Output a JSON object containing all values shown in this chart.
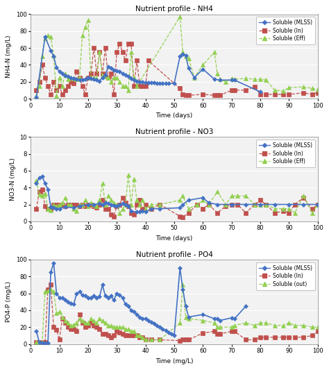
{
  "nh4": {
    "title": "Nutrient profile - NH4",
    "ylabel": "NH4-N (mg/L)",
    "xlabel": "Time (days)",
    "ylim": [
      0,
      100
    ],
    "xlim": [
      0,
      100
    ],
    "yticks": [
      0,
      20,
      40,
      60,
      80,
      100
    ],
    "xticks": [
      0,
      10,
      20,
      30,
      40,
      50,
      60,
      70,
      80,
      90,
      100
    ],
    "mlss_x": [
      2,
      5,
      7,
      8,
      9,
      10,
      11,
      12,
      13,
      14,
      15,
      16,
      17,
      18,
      19,
      20,
      21,
      22,
      23,
      24,
      25,
      26,
      27,
      28,
      29,
      30,
      31,
      32,
      33,
      34,
      35,
      36,
      37,
      38,
      39,
      40,
      41,
      42,
      43,
      44,
      45,
      46,
      47,
      48,
      50,
      52,
      53,
      54,
      55,
      57,
      60,
      64,
      66,
      70,
      71,
      80
    ],
    "mlss_y": [
      2,
      73,
      57,
      50,
      37,
      32,
      30,
      27,
      26,
      25,
      24,
      23,
      22,
      22,
      23,
      25,
      24,
      23,
      22,
      21,
      25,
      28,
      38,
      36,
      34,
      33,
      32,
      30,
      28,
      26,
      24,
      22,
      21,
      20,
      20,
      19,
      19,
      19,
      19,
      18,
      18,
      18,
      18,
      18,
      18,
      50,
      53,
      51,
      36,
      25,
      35,
      23,
      22,
      22,
      22,
      8
    ],
    "in_x": [
      2,
      3,
      4,
      5,
      6,
      7,
      8,
      9,
      10,
      11,
      12,
      13,
      14,
      15,
      16,
      17,
      18,
      19,
      20,
      21,
      22,
      23,
      24,
      25,
      26,
      27,
      28,
      29,
      30,
      31,
      32,
      33,
      34,
      35,
      36,
      37,
      38,
      39,
      40,
      41,
      52,
      53,
      54,
      55,
      60,
      64,
      65,
      66,
      70,
      71,
      75,
      78,
      80,
      82,
      85,
      88,
      90,
      95,
      98,
      100
    ],
    "in_y": [
      10,
      20,
      40,
      25,
      15,
      5,
      20,
      10,
      15,
      5,
      10,
      15,
      20,
      18,
      32,
      25,
      15,
      5,
      25,
      30,
      60,
      30,
      55,
      30,
      60,
      25,
      30,
      5,
      55,
      65,
      55,
      45,
      65,
      65,
      15,
      45,
      15,
      15,
      15,
      45,
      12,
      5,
      4,
      4,
      5,
      4,
      4,
      4,
      10,
      10,
      10,
      14,
      5,
      5,
      5,
      5,
      5,
      7,
      5,
      7
    ],
    "eff_x": [
      2,
      3,
      4,
      5,
      6,
      7,
      8,
      9,
      10,
      11,
      12,
      13,
      14,
      15,
      16,
      17,
      18,
      19,
      20,
      21,
      22,
      23,
      24,
      25,
      26,
      27,
      28,
      29,
      30,
      31,
      32,
      33,
      34,
      35,
      36,
      37,
      52,
      53,
      54,
      55,
      57,
      60,
      64,
      65,
      66,
      68,
      70,
      71,
      75,
      78,
      80,
      82,
      85,
      88,
      90,
      95,
      98,
      100
    ],
    "eff_y": [
      3,
      15,
      50,
      72,
      75,
      73,
      51,
      3,
      25,
      15,
      30,
      23,
      25,
      24,
      23,
      25,
      75,
      85,
      93,
      25,
      25,
      24,
      55,
      27,
      26,
      25,
      20,
      25,
      25,
      20,
      15,
      15,
      10,
      55,
      25,
      15,
      97,
      55,
      50,
      48,
      25,
      40,
      55,
      30,
      23,
      20,
      24,
      23,
      24,
      23,
      23,
      22,
      10,
      9,
      13,
      14,
      12,
      11
    ]
  },
  "no3": {
    "title": "Nutrient profile - NO3",
    "ylabel": "NO3-N (mg/L)",
    "xlabel": "Time (days)",
    "ylim": [
      0,
      10
    ],
    "xlim": [
      0,
      100
    ],
    "yticks": [
      0,
      2,
      4,
      6,
      8,
      10
    ],
    "xticks": [
      0,
      10,
      20,
      30,
      40,
      50,
      60,
      70,
      80,
      90,
      100
    ],
    "mlss_x": [
      2,
      3,
      4,
      5,
      6,
      7,
      8,
      9,
      10,
      12,
      15,
      17,
      20,
      22,
      24,
      25,
      26,
      27,
      28,
      29,
      30,
      31,
      32,
      33,
      34,
      35,
      37,
      38,
      39,
      40,
      42,
      45,
      52,
      53,
      55,
      60,
      62,
      65,
      70,
      75,
      80,
      85,
      90,
      95,
      100
    ],
    "mlss_y": [
      4.5,
      5.2,
      5.3,
      4.5,
      3.8,
      1.7,
      1.6,
      1.5,
      1.5,
      1.7,
      1.6,
      1.8,
      2.0,
      2.0,
      2.1,
      2.0,
      2.2,
      2.1,
      2.0,
      1.9,
      1.8,
      2.0,
      2.1,
      2.0,
      1.8,
      1.2,
      1.1,
      1.1,
      1.2,
      1.1,
      1.5,
      1.5,
      1.6,
      2.0,
      2.5,
      2.8,
      2.2,
      2.0,
      2.0,
      2.0,
      2.0,
      2.0,
      2.0,
      2.0,
      2.0
    ],
    "in_x": [
      2,
      3,
      4,
      5,
      6,
      7,
      8,
      9,
      10,
      11,
      12,
      13,
      14,
      15,
      16,
      17,
      18,
      19,
      20,
      21,
      22,
      23,
      24,
      25,
      26,
      27,
      28,
      29,
      30,
      31,
      32,
      33,
      34,
      35,
      36,
      37,
      38,
      39,
      40,
      42,
      45,
      52,
      53,
      55,
      58,
      60,
      62,
      65,
      68,
      70,
      72,
      75,
      78,
      80,
      82,
      85,
      88,
      90,
      92,
      95,
      98,
      100
    ],
    "in_y": [
      1.5,
      3.5,
      3.8,
      1.8,
      1.5,
      1.5,
      2.0,
      2.0,
      2.0,
      2.0,
      1.8,
      2.0,
      2.0,
      2.0,
      2.0,
      1.8,
      2.0,
      1.8,
      2.0,
      2.0,
      1.8,
      1.6,
      2.0,
      2.5,
      1.5,
      1.5,
      0.8,
      0.6,
      1.8,
      2.0,
      2.8,
      2.2,
      1.8,
      1.0,
      0.8,
      2.0,
      2.5,
      1.5,
      2.0,
      1.5,
      2.0,
      0.6,
      0.5,
      1.0,
      2.0,
      1.5,
      2.0,
      1.0,
      1.8,
      2.0,
      2.0,
      1.0,
      2.0,
      2.5,
      2.0,
      1.0,
      1.2,
      1.0,
      2.0,
      2.8,
      1.5,
      2.0
    ],
    "eff_x": [
      2,
      3,
      4,
      5,
      6,
      7,
      8,
      9,
      10,
      11,
      12,
      13,
      14,
      15,
      16,
      17,
      18,
      19,
      20,
      21,
      22,
      23,
      24,
      25,
      26,
      27,
      28,
      29,
      30,
      31,
      32,
      33,
      34,
      35,
      36,
      37,
      38,
      39,
      40,
      42,
      45,
      52,
      53,
      55,
      58,
      60,
      62,
      65,
      68,
      70,
      72,
      75,
      78,
      80,
      82,
      85,
      88,
      90,
      92,
      95,
      98,
      100
    ],
    "eff_y": [
      4.8,
      3.2,
      3.0,
      3.3,
      1.5,
      1.3,
      2.0,
      1.8,
      2.0,
      2.2,
      2.8,
      2.0,
      2.0,
      1.5,
      1.2,
      2.0,
      2.0,
      2.5,
      1.8,
      2.2,
      2.0,
      1.8,
      2.5,
      4.5,
      2.0,
      3.0,
      2.5,
      2.2,
      2.0,
      1.0,
      1.5,
      2.0,
      5.5,
      2.0,
      5.0,
      2.5,
      2.0,
      2.5,
      1.5,
      2.0,
      2.0,
      2.5,
      3.0,
      1.5,
      2.0,
      2.5,
      2.0,
      3.5,
      2.0,
      3.0,
      3.0,
      3.0,
      2.0,
      2.0,
      2.0,
      1.5,
      1.5,
      1.5,
      1.0,
      3.0,
      1.0,
      2.0
    ]
  },
  "po4": {
    "title": "Nutrient profile - PO4",
    "ylabel": "PO4-P (mg/L)",
    "xlabel": "Time (mg/L)",
    "ylim": [
      0,
      100
    ],
    "xlim": [
      0,
      100
    ],
    "yticks": [
      0,
      20,
      40,
      60,
      80,
      100
    ],
    "xticks": [
      0,
      10,
      20,
      30,
      40,
      50,
      60,
      70,
      80,
      90,
      100
    ],
    "mlss_x": [
      2,
      3,
      4,
      5,
      6,
      7,
      8,
      9,
      10,
      11,
      12,
      13,
      14,
      15,
      16,
      17,
      18,
      19,
      20,
      21,
      22,
      23,
      24,
      25,
      26,
      27,
      28,
      29,
      30,
      31,
      32,
      33,
      34,
      35,
      36,
      37,
      38,
      39,
      40,
      41,
      42,
      43,
      44,
      45,
      46,
      47,
      48,
      49,
      50,
      52,
      53,
      54,
      55,
      60,
      64,
      65,
      66,
      70,
      71,
      75
    ],
    "mlss_y": [
      15,
      2,
      1,
      1,
      1,
      85,
      96,
      60,
      55,
      55,
      52,
      50,
      48,
      47,
      60,
      62,
      58,
      57,
      55,
      55,
      57,
      55,
      56,
      70,
      57,
      55,
      57,
      52,
      60,
      58,
      55,
      47,
      45,
      40,
      38,
      35,
      32,
      30,
      30,
      28,
      26,
      24,
      22,
      20,
      18,
      16,
      14,
      12,
      10,
      90,
      65,
      45,
      32,
      35,
      30,
      30,
      28,
      31,
      30,
      45
    ],
    "in_x": [
      2,
      3,
      4,
      5,
      6,
      7,
      8,
      9,
      10,
      11,
      12,
      13,
      14,
      15,
      16,
      17,
      18,
      19,
      20,
      21,
      22,
      23,
      24,
      25,
      26,
      27,
      28,
      29,
      30,
      31,
      32,
      33,
      34,
      35,
      36,
      37,
      38,
      39,
      40,
      42,
      45,
      52,
      53,
      54,
      55,
      60,
      64,
      65,
      66,
      70,
      71,
      75,
      78,
      80,
      82,
      85,
      88,
      90,
      92,
      95,
      98,
      100
    ],
    "in_y": [
      2,
      2,
      2,
      2,
      65,
      70,
      20,
      17,
      5,
      30,
      25,
      20,
      18,
      18,
      15,
      35,
      25,
      20,
      22,
      25,
      22,
      20,
      18,
      12,
      12,
      10,
      8,
      10,
      15,
      14,
      12,
      10,
      10,
      10,
      10,
      10,
      8,
      8,
      5,
      5,
      5,
      4,
      5,
      5,
      5,
      13,
      15,
      12,
      12,
      15,
      15,
      5,
      5,
      8,
      8,
      8,
      8,
      8,
      8,
      8,
      10,
      15
    ],
    "out_x": [
      2,
      3,
      4,
      5,
      6,
      7,
      8,
      9,
      10,
      11,
      12,
      13,
      14,
      15,
      16,
      17,
      18,
      19,
      20,
      21,
      22,
      23,
      24,
      25,
      26,
      27,
      28,
      29,
      30,
      31,
      32,
      33,
      34,
      35,
      36,
      37,
      38,
      39,
      40,
      42,
      45,
      52,
      53,
      54,
      55,
      60,
      64,
      65,
      66,
      70,
      71,
      75,
      78,
      80,
      82,
      85,
      88,
      90,
      92,
      95,
      98,
      100
    ],
    "out_y": [
      2,
      2,
      2,
      62,
      63,
      65,
      62,
      37,
      38,
      32,
      28,
      25,
      22,
      23,
      25,
      30,
      28,
      25,
      25,
      30,
      28,
      25,
      30,
      28,
      25,
      22,
      22,
      20,
      20,
      20,
      20,
      18,
      18,
      15,
      15,
      10,
      10,
      8,
      5,
      5,
      5,
      25,
      70,
      32,
      30,
      28,
      25,
      20,
      20,
      20,
      22,
      25,
      22,
      25,
      25,
      22,
      22,
      25,
      22,
      22,
      20,
      20
    ]
  },
  "colors": {
    "mlss": "#4472c4",
    "in": "#c0504d",
    "eff": "#92d050",
    "out": "#92d050"
  },
  "bg_color": "#f2f2f2"
}
